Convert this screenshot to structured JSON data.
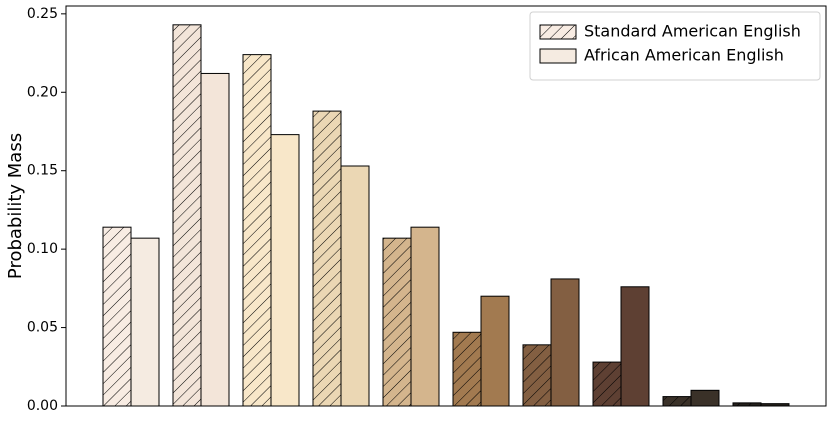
{
  "chart_data": {
    "type": "bar",
    "ylabel": "Probability Mass",
    "categories": [
      null,
      null,
      null,
      null,
      null,
      null,
      null,
      null,
      null,
      null
    ],
    "series": [
      {
        "name": "Standard American English",
        "hatch": true,
        "color": [
          "#f8ece3",
          "#f3e5d9",
          "#f8e7c9",
          "#ebd7b4",
          "#d4b58d",
          "#a27a50",
          "#835f42",
          "#5e4033",
          "#3a3128",
          "#25211d"
        ],
        "values": [
          0.114,
          0.243,
          0.224,
          0.188,
          0.107,
          0.047,
          0.039,
          0.028,
          0.006,
          0.002
        ]
      },
      {
        "name": "African American English",
        "hatch": false,
        "color": [
          "#f5ebe1",
          "#f3e5d9",
          "#f8e7c9",
          "#ebd7b4",
          "#d4b58d",
          "#a27a50",
          "#835f42",
          "#5e4033",
          "#3a3128",
          "#25211d"
        ],
        "values": [
          0.107,
          0.212,
          0.173,
          0.153,
          0.114,
          0.07,
          0.081,
          0.076,
          0.01,
          0.0015
        ]
      }
    ],
    "ylim": [
      0,
      0.255
    ],
    "yticks": [
      {
        "value": 0,
        "label": "0.00"
      },
      {
        "value": 0.05,
        "label": "0.05"
      },
      {
        "value": 0.1,
        "label": "0.10"
      },
      {
        "value": 0.15,
        "label": "0.15"
      },
      {
        "value": 0.2,
        "label": "0.20"
      },
      {
        "value": 0.25,
        "label": "0.25"
      }
    ],
    "legend": "upper right",
    "grid": false
  }
}
